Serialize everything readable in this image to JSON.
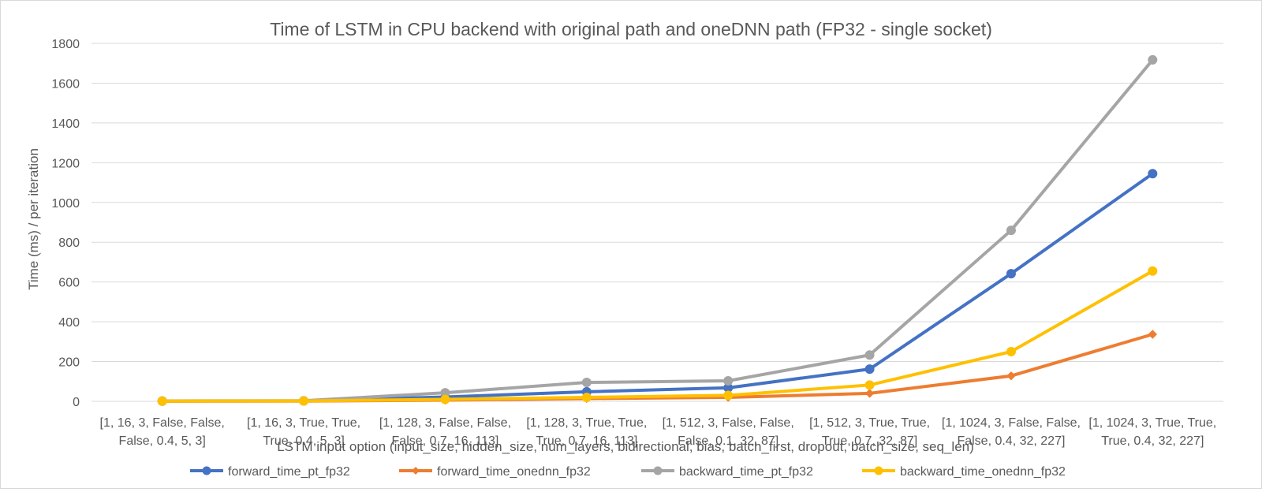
{
  "chart_data": {
    "type": "line",
    "title": "Time of LSTM in CPU backend with original path and oneDNN path (FP32 - single socket)",
    "xlabel": "LSTM input option (input_size, hidden_size, num_layers, bidirectional, bias, batch_first, dropout, batch_size, seq_len)",
    "ylabel": "Time (ms) / per iteration",
    "ylim": [
      0,
      1800
    ],
    "yticks": [
      "0",
      "200",
      "400",
      "600",
      "800",
      "1000",
      "1200",
      "1400",
      "1600",
      "1800"
    ],
    "grid": true,
    "legend_position": "bottom",
    "categories": [
      [
        "[1, 16, 3, False, False,",
        "False, 0.4, 5, 3]"
      ],
      [
        "[1, 16, 3, True, True,",
        "True, 0.4, 5, 3]"
      ],
      [
        "[1, 128, 3, False, False,",
        "False, 0.7, 16, 113]"
      ],
      [
        "[1, 128, 3, True, True,",
        "True, 0.7, 16, 113]"
      ],
      [
        "[1, 512, 3, False, False,",
        "False, 0.1, 32, 87]"
      ],
      [
        "[1, 512, 3, True, True,",
        "True, 0.7, 32, 87]"
      ],
      [
        "[1, 1024, 3, False, False,",
        "False, 0.4, 32, 227]"
      ],
      [
        "[1, 1024, 3, True, True,",
        "True, 0.4, 32, 227]"
      ]
    ],
    "series": [
      {
        "name": "forward_time_pt_fp32",
        "color": "#4472C4",
        "marker": "circle",
        "values": [
          1,
          2,
          22,
          48,
          68,
          162,
          642,
          1145
        ]
      },
      {
        "name": "forward_time_onednn_fp32",
        "color": "#ED7D31",
        "marker": "diamond",
        "values": [
          1,
          1,
          6,
          14,
          20,
          40,
          128,
          337
        ]
      },
      {
        "name": "backward_time_pt_fp32",
        "color": "#A5A5A5",
        "marker": "circle",
        "values": [
          2,
          3,
          43,
          95,
          103,
          233,
          860,
          1717
        ]
      },
      {
        "name": "backward_time_onednn_fp32",
        "color": "#FFC000",
        "marker": "circle",
        "values": [
          1,
          2,
          10,
          20,
          30,
          82,
          250,
          655
        ]
      }
    ]
  }
}
